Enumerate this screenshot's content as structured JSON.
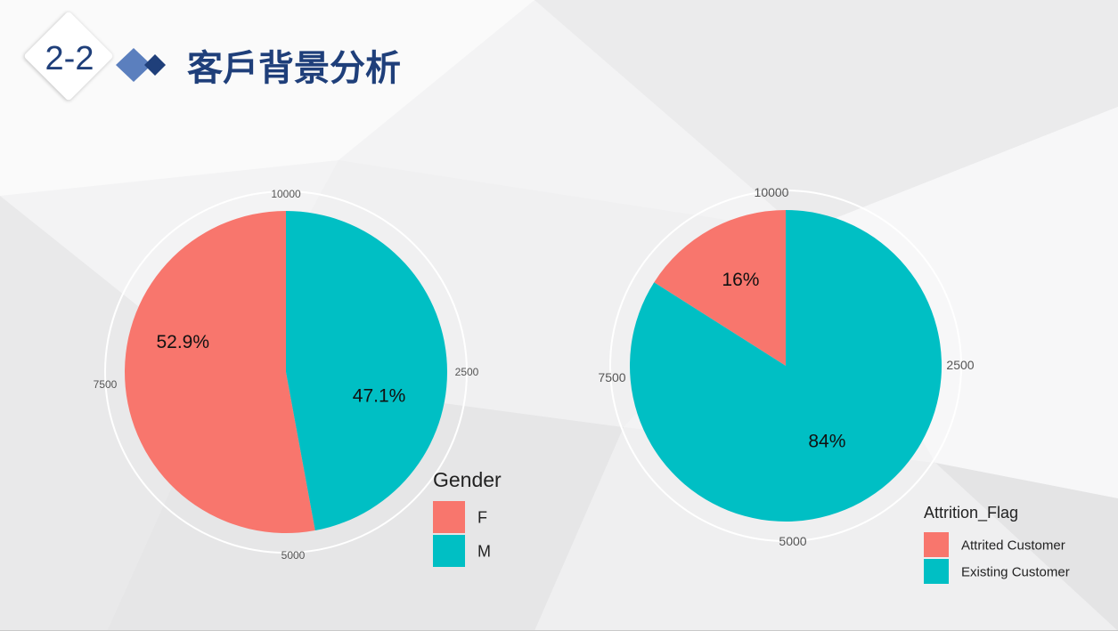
{
  "slide": {
    "number": "2-2",
    "title": "客戶背景分析"
  },
  "chart_data": [
    {
      "type": "pie",
      "title": "",
      "legend_title": "Gender",
      "legend_placement": "bottom-right",
      "categories": [
        "F",
        "M"
      ],
      "values": [
        52.9,
        47.1
      ],
      "labels": [
        "52.9%",
        "47.1%"
      ],
      "colors": [
        "#f8766d",
        "#00bfc4"
      ],
      "radial_ticks": [
        "10000",
        "2500",
        "5000",
        "7500"
      ]
    },
    {
      "type": "pie",
      "title": "",
      "legend_title": "Attrition_Flag",
      "legend_placement": "bottom-right",
      "categories": [
        "Attrited Customer",
        "Existing Customer"
      ],
      "values": [
        16,
        84
      ],
      "labels": [
        "16%",
        "84%"
      ],
      "colors": [
        "#f8766d",
        "#00bfc4"
      ],
      "radial_ticks": [
        "10000",
        "2500",
        "5000",
        "7500"
      ]
    }
  ]
}
